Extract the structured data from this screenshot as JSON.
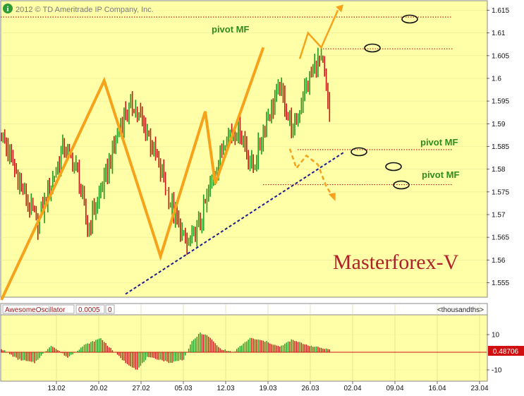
{
  "header": {
    "copyright": "2012 © TD Ameritrade IP Company, Inc."
  },
  "annotations": {
    "pivot_top": "pivot MF",
    "pivot_mid": "pivot MF",
    "pivot_low": "pivot MF",
    "brand": "Masterforex-V"
  },
  "oscillator": {
    "name": "AwesomeOscillator",
    "value": "0.0005",
    "param": "0",
    "units": "<thousandths>",
    "last_value": "0.48706"
  },
  "colors": {
    "plot_bg": "#ffffa8",
    "up_bar": "#1e9a1e",
    "down_bar": "#c81414",
    "zigzag": "#f6a21a",
    "pivot_line": "#c82020",
    "trendline": "#1a1a8c",
    "osc_zero": "#d01010"
  },
  "chart_data": [
    {
      "type": "bar",
      "subtype": "ohlc-price",
      "ylim": [
        1.55,
        1.617
      ],
      "y_ticks": [
        "1.555",
        "1.56",
        "1.565",
        "1.57",
        "1.575",
        "1.58",
        "1.585",
        "1.59",
        "1.595",
        "1.6",
        "1.605",
        "1.61",
        "1.615"
      ],
      "x_ticks": [
        "13.02",
        "20.02",
        "27.02",
        "05.03",
        "12.03",
        "19.03",
        "26.03",
        "02.04",
        "09.04",
        "16.04",
        "23.04"
      ],
      "closes_anchor": [
        [
          0,
          1.588
        ],
        [
          8,
          1.58
        ],
        [
          16,
          1.572
        ],
        [
          22,
          1.568
        ],
        [
          30,
          1.577
        ],
        [
          38,
          1.585
        ],
        [
          46,
          1.579
        ],
        [
          52,
          1.567
        ],
        [
          60,
          1.575
        ],
        [
          68,
          1.585
        ],
        [
          74,
          1.592
        ],
        [
          80,
          1.594
        ],
        [
          88,
          1.588
        ],
        [
          96,
          1.58
        ],
        [
          104,
          1.57
        ],
        [
          112,
          1.563
        ],
        [
          120,
          1.568
        ],
        [
          128,
          1.579
        ],
        [
          136,
          1.588
        ],
        [
          144,
          1.589
        ],
        [
          152,
          1.58
        ],
        [
          160,
          1.591
        ],
        [
          168,
          1.598
        ],
        [
          176,
          1.588
        ],
        [
          182,
          1.596
        ],
        [
          190,
          1.604
        ],
        [
          194,
          1.603
        ],
        [
          198,
          1.591
        ]
      ],
      "pivot_levels": [
        1.6135,
        1.6065,
        1.5843,
        1.5766
      ],
      "zigzag": [
        [
          1.5512,
          0
        ],
        [
          1.5995,
          62
        ],
        [
          1.5608,
          96
        ],
        [
          1.5927,
          123
        ],
        [
          1.5768,
          129
        ],
        [
          1.6068,
          158
        ]
      ],
      "trendline": [
        [
          1.5525,
          60
        ],
        [
          1.5838,
          207
        ]
      ],
      "projection_up": [
        [
          1.6043,
          180
        ],
        [
          1.61,
          185
        ],
        [
          1.6068,
          193
        ],
        [
          1.615,
          203
        ]
      ],
      "projection_down": [
        [
          1.5845,
          174
        ],
        [
          1.5802,
          178
        ],
        [
          1.583,
          184
        ],
        [
          1.581,
          191
        ],
        [
          1.5762,
          196
        ],
        [
          1.5745,
          199
        ]
      ]
    },
    {
      "type": "bar",
      "subtype": "oscillator-histogram",
      "name": "AwesomeOscillator",
      "y_ticks": [
        "10",
        "-10"
      ],
      "ylim": [
        -13,
        14
      ],
      "values_anchor": [
        [
          0,
          2
        ],
        [
          10,
          -4
        ],
        [
          20,
          -6
        ],
        [
          30,
          4
        ],
        [
          40,
          -3
        ],
        [
          50,
          4
        ],
        [
          60,
          8
        ],
        [
          65,
          3
        ],
        [
          75,
          -6
        ],
        [
          82,
          -10
        ],
        [
          88,
          -3
        ],
        [
          95,
          -4
        ],
        [
          102,
          -6
        ],
        [
          110,
          -4
        ],
        [
          115,
          6
        ],
        [
          120,
          11
        ],
        [
          125,
          9
        ],
        [
          132,
          2
        ],
        [
          140,
          0
        ],
        [
          150,
          8
        ],
        [
          160,
          6
        ],
        [
          168,
          3
        ],
        [
          175,
          7
        ],
        [
          185,
          4
        ],
        [
          195,
          2
        ]
      ]
    }
  ]
}
